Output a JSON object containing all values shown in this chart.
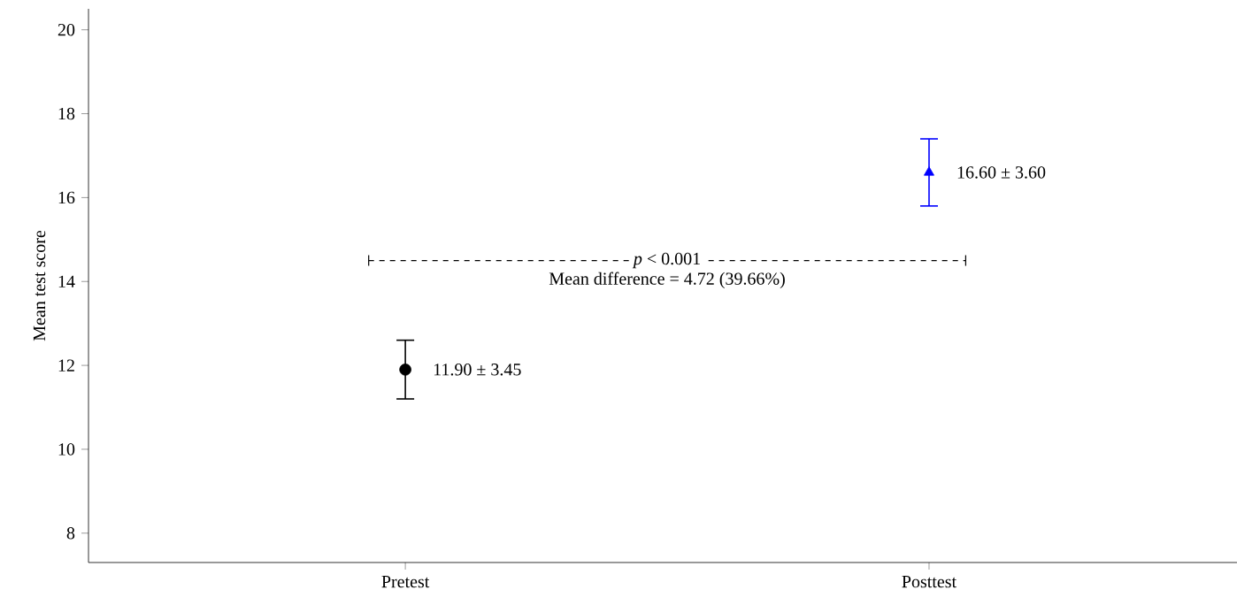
{
  "chart_data": {
    "type": "scatter",
    "ylabel": "Mean test score",
    "categories": [
      "Pretest",
      "Posttest"
    ],
    "series": [
      {
        "color": "#000000",
        "marker": "circle",
        "values": [
          11.9,
          null
        ],
        "errors": [
          [
            11.2,
            12.6
          ],
          null
        ],
        "value_labels": [
          "11.90 ± 3.45",
          null
        ]
      },
      {
        "color": "#0000ff",
        "marker": "triangle",
        "values": [
          null,
          16.6
        ],
        "errors": [
          null,
          [
            15.8,
            17.4
          ]
        ],
        "value_labels": [
          null,
          "16.60 ± 3.60"
        ]
      }
    ],
    "annotations": [
      "*p* < 0.001",
      "Mean difference = 4.72 (39.66%)"
    ],
    "ylim": [
      7.3,
      20.5
    ],
    "yticks": [
      8,
      10,
      12,
      14,
      16,
      18,
      20
    ]
  }
}
